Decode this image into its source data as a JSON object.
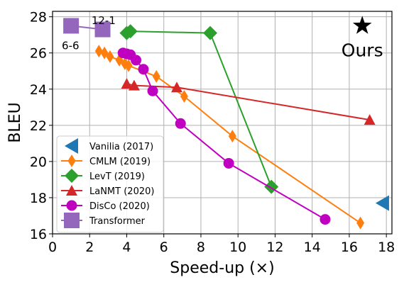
{
  "chart_data": {
    "type": "line",
    "xlabel": "Speed-up (×)",
    "ylabel": "BLEU",
    "xlim": [
      0,
      18.3
    ],
    "ylim": [
      16,
      28.3
    ],
    "xticks": [
      0,
      2,
      4,
      6,
      8,
      10,
      12,
      14,
      16,
      18
    ],
    "yticks": [
      16,
      18,
      20,
      22,
      24,
      26,
      28
    ],
    "grid": true,
    "legend_position": "lower-left",
    "series": [
      {
        "name": "Vanilia (2017)",
        "color": "#1f77b4",
        "marker": "triangle-left",
        "x": [
          17.8
        ],
        "y": [
          17.7
        ]
      },
      {
        "name": "CMLM (2019)",
        "color": "#ff7f0e",
        "marker": "thin-diamond",
        "x": [
          2.5,
          2.8,
          3.1,
          3.6,
          3.9,
          4.1,
          5.6,
          7.1,
          9.7,
          16.6
        ],
        "y": [
          26.1,
          26.0,
          25.8,
          25.6,
          25.4,
          25.3,
          24.7,
          23.6,
          21.4,
          16.6
        ]
      },
      {
        "name": "LevT (2019)",
        "color": "#2ca02c",
        "marker": "diamond",
        "x": [
          4.0,
          4.2,
          8.5,
          11.8
        ],
        "y": [
          27.1,
          27.2,
          27.1,
          18.6
        ]
      },
      {
        "name": "LaNMT (2020)",
        "color": "#d62728",
        "marker": "triangle-up",
        "x": [
          4.0,
          4.4,
          6.7,
          17.1
        ],
        "y": [
          24.3,
          24.2,
          24.1,
          22.3
        ]
      },
      {
        "name": "DisCo (2020)",
        "color": "#c000c0",
        "marker": "circle",
        "x": [
          3.8,
          4.0,
          4.2,
          4.5,
          4.9,
          5.4,
          6.9,
          9.5,
          14.7
        ],
        "y": [
          26.0,
          25.95,
          25.9,
          25.6,
          25.1,
          23.9,
          22.1,
          19.9,
          16.8
        ]
      },
      {
        "name": "Transformer",
        "color": "#9467bd",
        "marker": "square",
        "x": [
          1.0,
          2.7
        ],
        "y": [
          27.5,
          27.3
        ]
      }
    ],
    "ours": {
      "label": "Ours",
      "marker": "star",
      "color": "#000000",
      "x": 16.7,
      "y": 27.5
    },
    "annotations": [
      {
        "text": "12-1",
        "x": 2.1,
        "y": 27.8
      },
      {
        "text": "6-6",
        "x": 0.5,
        "y": 26.4
      }
    ]
  }
}
